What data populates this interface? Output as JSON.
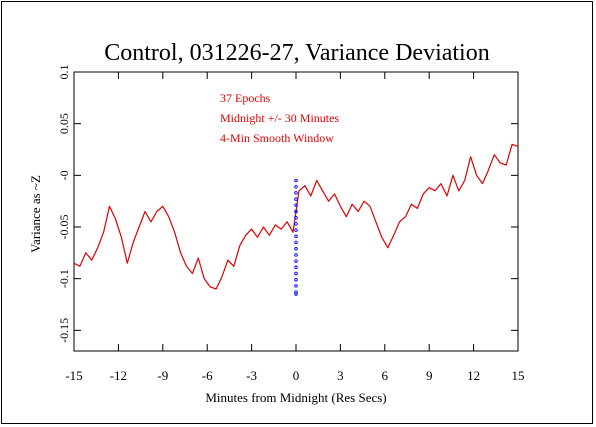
{
  "chart_data": {
    "type": "line",
    "title": "Control, 031226-27, Variance Deviation",
    "xlabel": "Minutes from Midnight (Res Secs)",
    "ylabel": "Variance as ~Z",
    "xlim": [
      -15,
      15
    ],
    "ylim": [
      -0.17,
      0.1
    ],
    "x_ticks": [
      -15,
      -12,
      -9,
      -6,
      -3,
      0,
      3,
      6,
      9,
      12,
      15
    ],
    "x_tick_labels": [
      "-15",
      "-12",
      "-9",
      "-6",
      "-3",
      "0",
      "3",
      "6",
      "9",
      "12",
      "15"
    ],
    "y_ticks": [
      0.1,
      0.05,
      0,
      -0.05,
      -0.1,
      -0.15
    ],
    "y_tick_labels": [
      "0.1",
      "0.05",
      "-0",
      "-0.05",
      "-0.1",
      "-0.15"
    ],
    "annotations": [
      "37 Epochs",
      "Midnight +/- 30 Minutes",
      "4-Min Smooth Window"
    ],
    "colors": {
      "series": "#e00000",
      "marker": "#0000ff",
      "text_annotations": "#e00000"
    },
    "series": [
      {
        "color": "#e00000",
        "x": [
          -15,
          -14.6,
          -14.2,
          -13.8,
          -13.4,
          -13.0,
          -12.6,
          -12.2,
          -11.8,
          -11.4,
          -11.0,
          -10.6,
          -10.2,
          -9.8,
          -9.4,
          -9.0,
          -8.6,
          -8.2,
          -7.8,
          -7.4,
          -7.0,
          -6.6,
          -6.2,
          -5.8,
          -5.4,
          -5.0,
          -4.6,
          -4.2,
          -3.8,
          -3.4,
          -3.0,
          -2.6,
          -2.2,
          -1.8,
          -1.4,
          -1.0,
          -0.6,
          -0.2,
          0.2,
          0.6,
          1.0,
          1.4,
          1.8,
          2.2,
          2.6,
          3.0,
          3.4,
          3.8,
          4.2,
          4.6,
          5.0,
          5.4,
          5.8,
          6.2,
          6.6,
          7.0,
          7.4,
          7.8,
          8.2,
          8.6,
          9.0,
          9.4,
          9.8,
          10.2,
          10.6,
          11.0,
          11.4,
          11.8,
          12.2,
          12.6,
          13.0,
          13.4,
          13.8,
          14.2,
          14.6,
          15.0
        ],
        "y": [
          -0.085,
          -0.088,
          -0.075,
          -0.082,
          -0.07,
          -0.055,
          -0.03,
          -0.042,
          -0.06,
          -0.085,
          -0.065,
          -0.05,
          -0.035,
          -0.045,
          -0.035,
          -0.03,
          -0.04,
          -0.055,
          -0.075,
          -0.088,
          -0.095,
          -0.08,
          -0.1,
          -0.108,
          -0.11,
          -0.098,
          -0.082,
          -0.088,
          -0.068,
          -0.058,
          -0.052,
          -0.06,
          -0.05,
          -0.058,
          -0.048,
          -0.052,
          -0.045,
          -0.055,
          -0.015,
          -0.01,
          -0.02,
          -0.005,
          -0.015,
          -0.025,
          -0.018,
          -0.03,
          -0.04,
          -0.028,
          -0.035,
          -0.025,
          -0.03,
          -0.045,
          -0.06,
          -0.07,
          -0.058,
          -0.045,
          -0.04,
          -0.028,
          -0.032,
          -0.018,
          -0.012,
          -0.015,
          -0.008,
          -0.02,
          0.0,
          -0.015,
          -0.005,
          0.018,
          0.0,
          -0.008,
          0.005,
          0.02,
          0.012,
          0.01,
          0.03,
          0.028
        ]
      }
    ],
    "marker_series": {
      "color": "#0000ff",
      "x": [
        0,
        0,
        0,
        0,
        0,
        0,
        0,
        0,
        0,
        0,
        0,
        0,
        0,
        0,
        0,
        0,
        0,
        0,
        0,
        0
      ],
      "y": [
        -0.005,
        -0.011,
        -0.017,
        -0.023,
        -0.029,
        -0.035,
        -0.041,
        -0.047,
        -0.053,
        -0.059,
        -0.065,
        -0.071,
        -0.077,
        -0.083,
        -0.089,
        -0.095,
        -0.101,
        -0.107,
        -0.113,
        -0.115
      ]
    }
  }
}
